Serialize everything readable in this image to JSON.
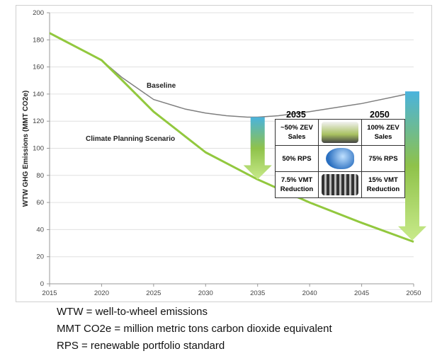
{
  "chart_data": {
    "type": "line",
    "ylabel": "WTW GHG Emissions (MMT CO2e)",
    "xlim": [
      2015,
      2050
    ],
    "ylim": [
      0,
      200
    ],
    "xticks": [
      2015,
      2020,
      2025,
      2030,
      2035,
      2040,
      2045,
      2050
    ],
    "yticks": [
      0,
      20,
      40,
      60,
      80,
      100,
      120,
      140,
      160,
      180,
      200
    ],
    "grid": true,
    "series": [
      {
        "name": "Baseline",
        "color": "#7f7f7f",
        "x": [
          2015,
          2016,
          2018,
          2020,
          2022,
          2025,
          2028,
          2030,
          2032,
          2034,
          2035,
          2037,
          2040,
          2045,
          2050
        ],
        "y": [
          185,
          181,
          173,
          165,
          152,
          136,
          129,
          126,
          124,
          123,
          123,
          124,
          127,
          133,
          141
        ]
      },
      {
        "name": "Climate Planning Scenario",
        "color": "#92c83e",
        "x": [
          2015,
          2016,
          2018,
          2020,
          2022,
          2025,
          2028,
          2030,
          2032,
          2035,
          2040,
          2045,
          2050
        ],
        "y": [
          185,
          181,
          173,
          165,
          150,
          127,
          109,
          97,
          89,
          77,
          60,
          45,
          31
        ]
      }
    ],
    "arrows": [
      {
        "x": 2035,
        "from": 123,
        "to": 77
      },
      {
        "x": 2050,
        "from": 142,
        "to": 32
      }
    ]
  },
  "table": {
    "headers": [
      "2035",
      "2050"
    ],
    "rows": [
      {
        "left": "~50% ZEV Sales",
        "icon": "electric-car-charging-image",
        "right": "100% ZEV Sales"
      },
      {
        "left": "50% RPS",
        "icon": "light-bulb-image",
        "right": "75% RPS"
      },
      {
        "left": "7.5% VMT Reduction",
        "icon": "traffic-jam-image",
        "right": "15% VMT Reduction"
      }
    ]
  },
  "notes": [
    "WTW = well-to-wheel emissions",
    "MMT CO2e = million metric tons carbon dioxide equivalent",
    "RPS = renewable portfolio standard"
  ]
}
